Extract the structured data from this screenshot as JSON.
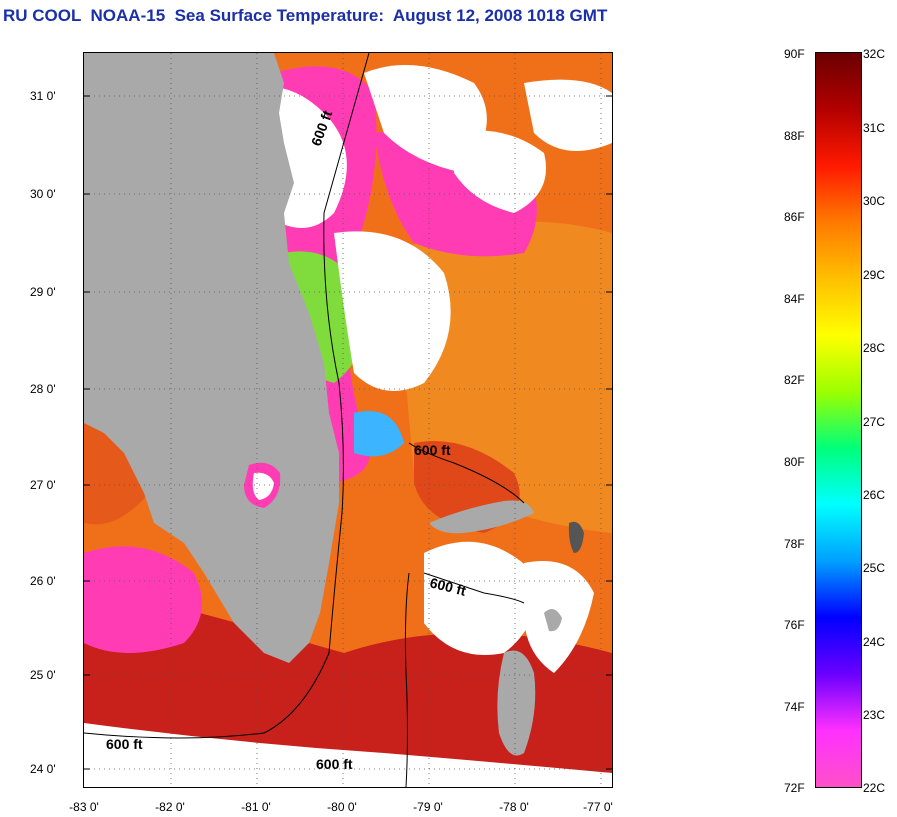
{
  "title": "RU COOL  NOAA-15  Sea Surface Temperature:  August 12, 2008 1018 GMT",
  "y_axis_labels": [
    "31 0'",
    "30 0'",
    "29 0'",
    "28 0'",
    "27 0'",
    "26 0'",
    "25 0'",
    "24 0'"
  ],
  "x_axis_labels": [
    "-83 0'",
    "-82 0'",
    "-81 0'",
    "-80 0'",
    "-79 0'",
    "-78 0'",
    "-77 0'"
  ],
  "contour_label": "600 ft",
  "colorbar": {
    "fahrenheit_labels": [
      "90F",
      "88F",
      "86F",
      "84F",
      "82F",
      "80F",
      "78F",
      "76F",
      "74F",
      "72F"
    ],
    "celsius_labels": [
      "32C",
      "31C",
      "30C",
      "29C",
      "28C",
      "27C",
      "26C",
      "25C",
      "24C",
      "23C",
      "22C"
    ],
    "colors": [
      "#6b0000",
      "#b30000",
      "#ff1a00",
      "#ff7a00",
      "#ffc000",
      "#ffff00",
      "#9cff00",
      "#00ff7a",
      "#00ffff",
      "#00a0ff",
      "#0000ff",
      "#6a00ff",
      "#ff30ff",
      "#ff50c8"
    ]
  },
  "colors": {
    "title": "#1a2fa8",
    "land": "#a9a9a9",
    "cloud": "#ffffff",
    "warm_sea": "#f06a10",
    "hot_sea": "#c81a10",
    "cold_flag": "#ff3cb4"
  }
}
